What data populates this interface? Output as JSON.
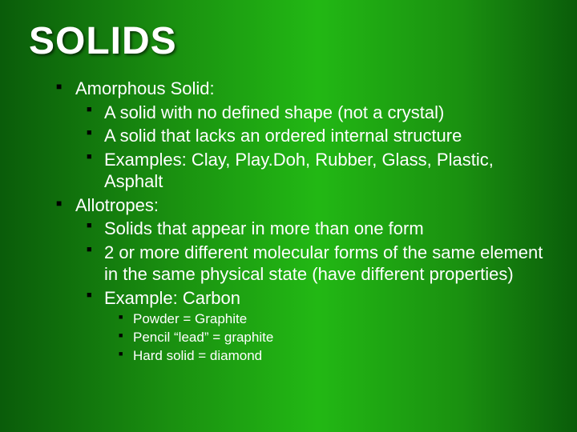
{
  "slide": {
    "background_gradient": [
      "#0a5c0a",
      "#1a9010",
      "#22b814",
      "#1a9010",
      "#0a5c0a"
    ],
    "text_color": "#ffffff",
    "bullet_color": "#000000",
    "title": "SOLIDS",
    "title_fontsize": 48,
    "body_fontsize_l1": 22,
    "body_fontsize_l2": 22,
    "body_fontsize_l3": 17,
    "items": [
      {
        "text": "Amorphous Solid:",
        "children": [
          {
            "text": "A solid with no defined shape (not a crystal)"
          },
          {
            "text": "A solid that lacks an ordered internal structure"
          },
          {
            "text": "Examples: Clay, Play.Doh, Rubber, Glass, Plastic, Asphalt"
          }
        ]
      },
      {
        "text": "Allotropes:",
        "children": [
          {
            "text": "Solids that appear in more than one form"
          },
          {
            "text": "2 or more different molecular forms of the same element in the same physical state (have different properties)"
          },
          {
            "text": "Example: Carbon",
            "children": [
              {
                "text": "Powder = Graphite"
              },
              {
                "text": "Pencil “lead” = graphite"
              },
              {
                "text": "Hard solid = diamond"
              }
            ]
          }
        ]
      }
    ]
  }
}
